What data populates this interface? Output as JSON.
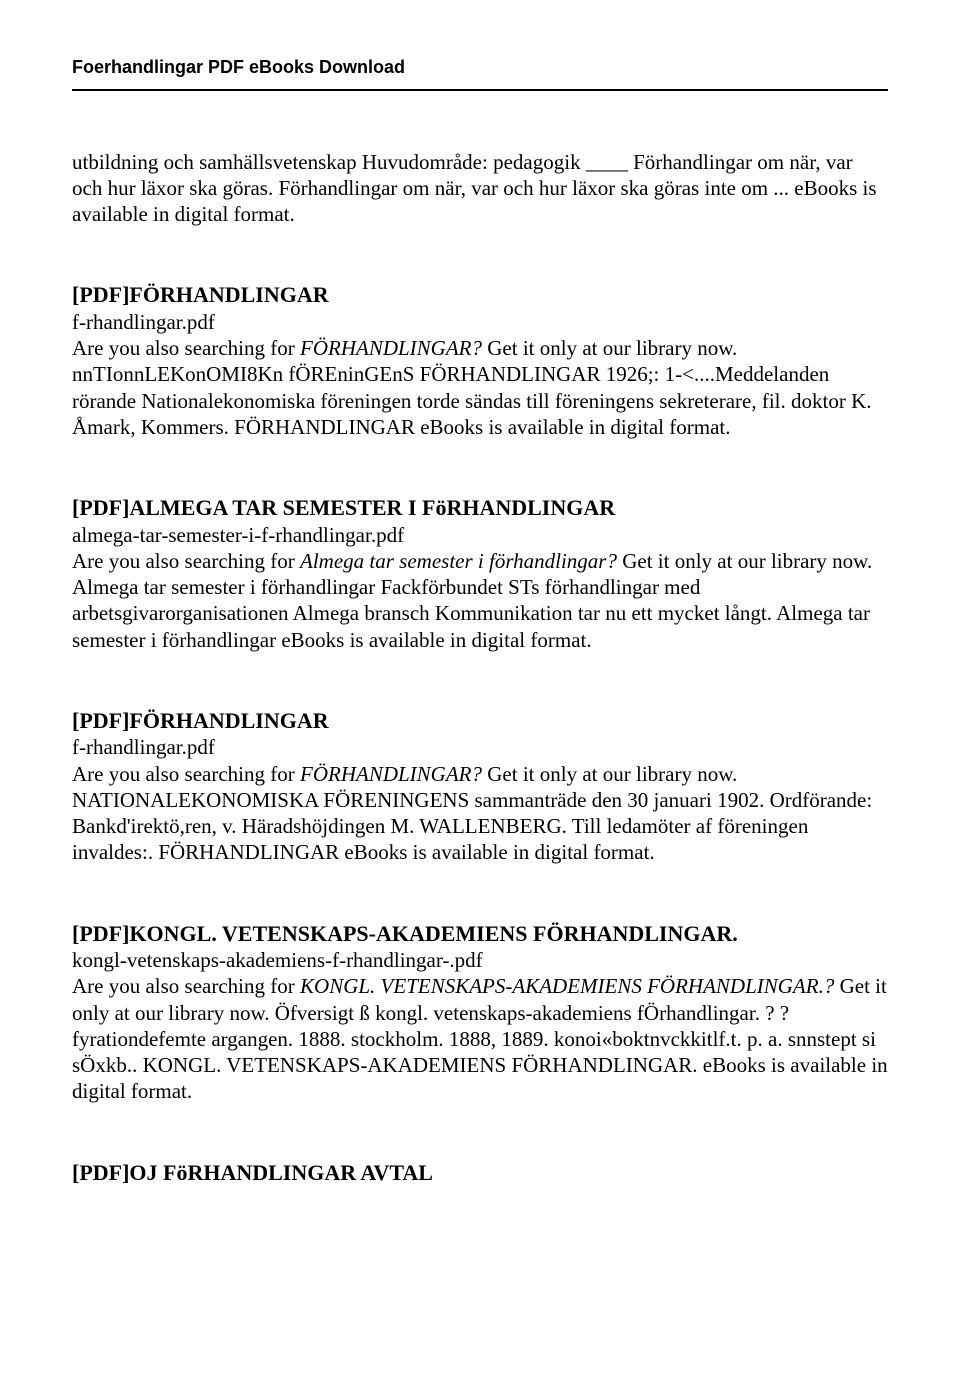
{
  "header": "Foerhandlingar PDF eBooks Download",
  "intro": {
    "p1": "utbildning och samhällsvetenskap Huvudområde: pedagogik ____ Förhandlingar om när, var och hur läxor ska göras. Förhandlingar om när, var och hur läxor ska göras inte om ... eBooks is available in digital format."
  },
  "entries": [
    {
      "title": "[PDF]FÖRHANDLINGAR",
      "file": "f-rhandlingar.pdf",
      "body_pre": "Are you also searching for ",
      "body_em": "FÖRHANDLINGAR?",
      "body_post": " Get it only at our library now. nnTIonnLEKonOMI8Kn fÖREninGEnS FÖRHANDLINGAR 1926;: 1-<....Meddelanden rörande Nationalekonomiska föreningen torde sändas till föreningens sekreterare, fil. doktor K. Åmark, Kommers. FÖRHANDLINGAR eBooks is available in digital format."
    },
    {
      "title": "[PDF]ALMEGA TAR SEMESTER I FöRHANDLINGAR",
      "file": "almega-tar-semester-i-f-rhandlingar.pdf",
      "body_pre": "Are you also searching for ",
      "body_em": "Almega tar semester i förhandlingar?",
      "body_post": " Get it only at our library now. Almega tar semester i förhandlingar Fackförbundet STs förhandlingar med arbetsgivarorganisationen Almega bransch Kommunikation tar nu ett mycket långt. Almega tar semester i förhandlingar eBooks is available in digital format."
    },
    {
      "title": "[PDF]FÖRHANDLINGAR",
      "file": "f-rhandlingar.pdf",
      "body_pre": "Are you also searching for ",
      "body_em": "FÖRHANDLINGAR?",
      "body_post": " Get it only at our library now. NATIONALEKONOMISKA FÖRENINGENS sammanträde den 30 januari 1902. Ordförande: Bankd'irektö,ren, v. Häradshöjdingen M. WALLENBERG. Till ledamöter af föreningen invaldes:. FÖRHANDLINGAR eBooks is available in digital format."
    },
    {
      "title": "[PDF]KONGL. VETENSKAPS-AKADEMIENS FÖRHANDLINGAR.",
      "file": "kongl-vetenskaps-akademiens-f-rhandlingar-.pdf",
      "body_pre": "Are you also searching for ",
      "body_em": "KONGL. VETENSKAPS-AKADEMIENS FÖRHANDLINGAR.?",
      "body_post": " Get it only at our library now. Öfversigt ß kongl. vetenskaps-akademiens fÖrhandlingar. ? ? fyrationdefemte argangen. 1888. stockholm. 1888, 1889. konoi«boktnvckkitlf.t. p. a. snnstept si sÖxkb.. KONGL. VETENSKAPS-AKADEMIENS FÖRHANDLINGAR. eBooks is available in digital format."
    }
  ],
  "last_title": "[PDF]OJ FöRHANDLINGAR AVTAL"
}
